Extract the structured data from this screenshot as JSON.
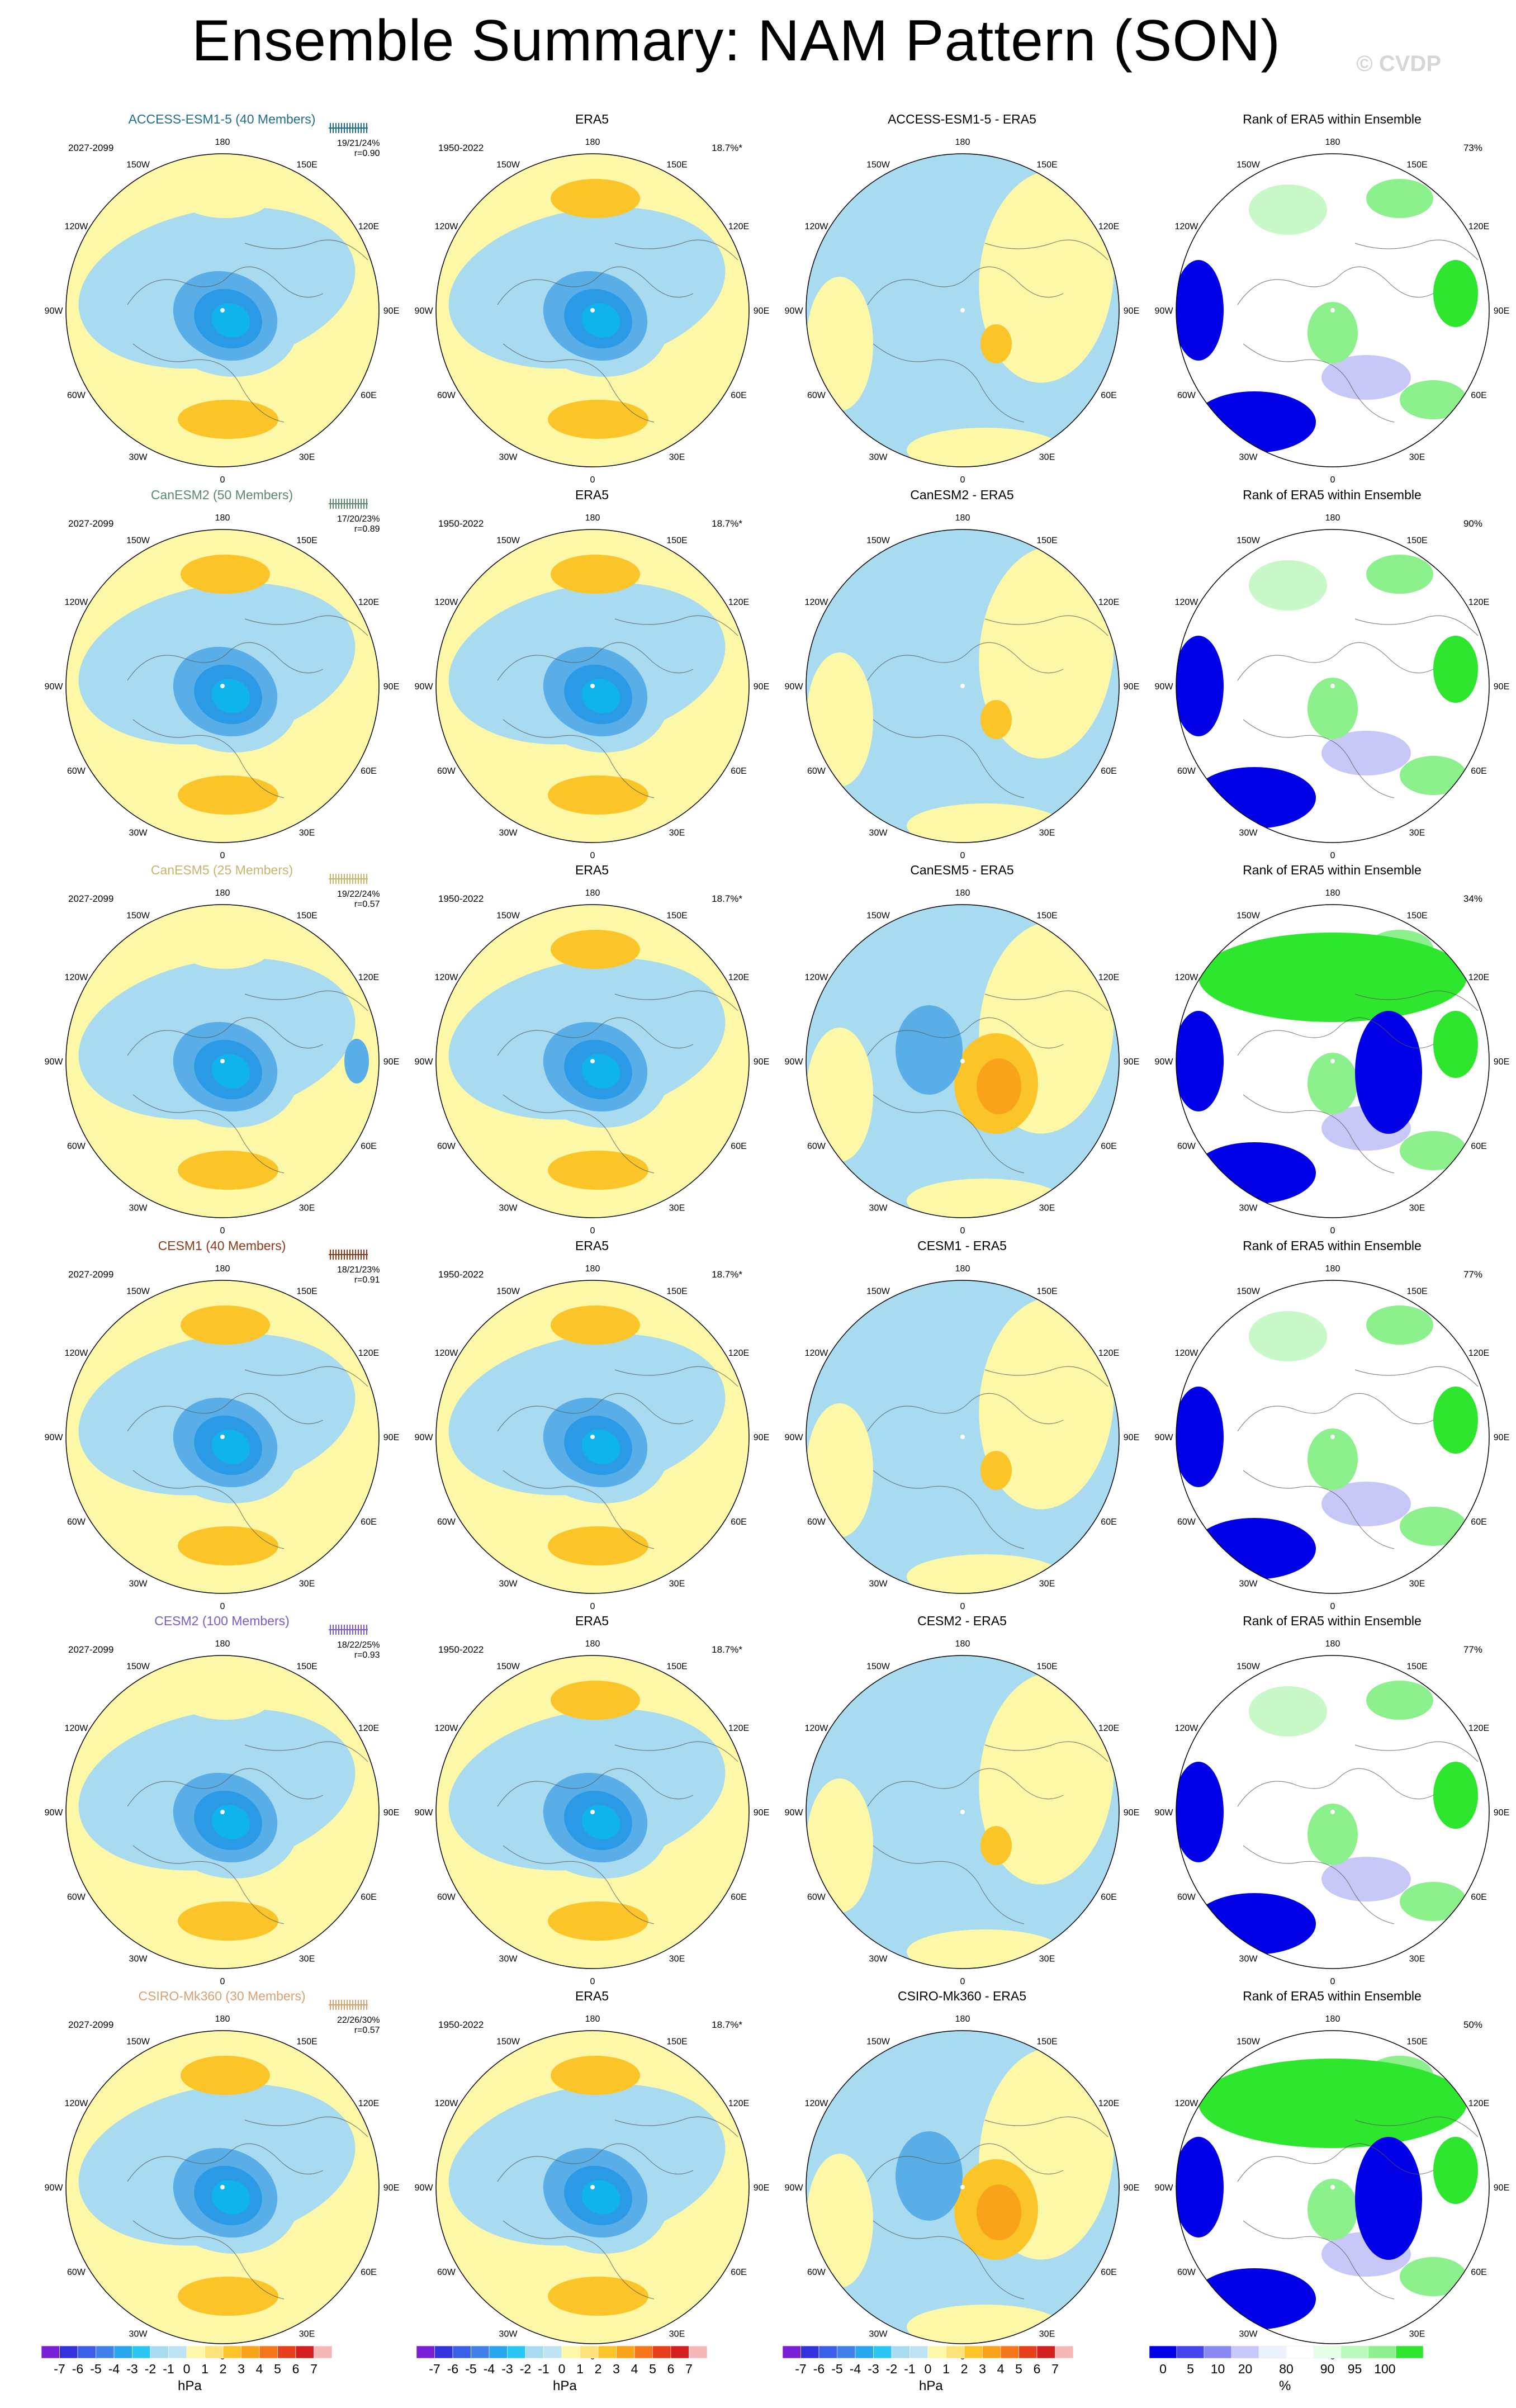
{
  "title": "Ensemble Summary: NAM Pattern (SON)",
  "watermark": "© CVDP",
  "lon_labels": [
    "180",
    "150E",
    "120E",
    "90E",
    "60E",
    "30E",
    "0",
    "30W",
    "60W",
    "90W",
    "120W",
    "150W"
  ],
  "obs_title": "ERA5",
  "rank_title": "Rank of ERA5 within Ensemble",
  "obs_period": "1950-2022",
  "obs_pct": "18.7%*",
  "model_period": "2027-2099",
  "rows": [
    {
      "model_title": "ACCESS-ESM1-5 (40 Members)",
      "model_color": "#1f6e8c",
      "pct_range": "19/21/24%",
      "r": "r=0.90",
      "diff_title": "ACCESS-ESM1-5 - ERA5",
      "rank_pct": "73%",
      "rank_icon": "rank-map-icon"
    },
    {
      "model_title": "CanESM2 (50 Members)",
      "model_color": "#5a8a6a",
      "pct_range": "17/20/23%",
      "r": "r=0.89",
      "diff_title": "CanESM2 - ERA5",
      "rank_pct": "90%",
      "rank_icon": "rank-map-icon"
    },
    {
      "model_title": "CanESM5 (25 Members)",
      "model_color": "#c8b46a",
      "pct_range": "19/22/24%",
      "r": "r=0.57",
      "diff_title": "CanESM5 - ERA5",
      "rank_pct": "34%",
      "rank_icon": "rank-map-icon"
    },
    {
      "model_title": "CESM1 (40 Members)",
      "model_color": "#8b3a1a",
      "pct_range": "18/21/23%",
      "r": "r=0.91",
      "diff_title": "CESM1 - ERA5",
      "rank_pct": "77%",
      "rank_icon": "rank-map-icon"
    },
    {
      "model_title": "CESM2 (100 Members)",
      "model_color": "#7b5cc8",
      "pct_range": "18/22/25%",
      "r": "r=0.93",
      "diff_title": "CESM2 - ERA5",
      "rank_pct": "77%",
      "rank_icon": "rank-map-icon"
    },
    {
      "model_title": "CSIRO-Mk360 (30 Members)",
      "model_color": "#d9a070",
      "pct_range": "22/26/30%",
      "r": "r=0.57",
      "diff_title": "CSIRO-Mk360 - ERA5",
      "rank_pct": "50%",
      "rank_icon": "rank-map-icon"
    }
  ],
  "colorbar_hpa": {
    "unit": "hPa",
    "ticks": [
      "-7",
      "-6",
      "-5",
      "-4",
      "-3",
      "-2",
      "-1",
      "0",
      "1",
      "2",
      "3",
      "4",
      "5",
      "6",
      "7"
    ],
    "colors": [
      "#7a1fd6",
      "#3333dd",
      "#3b5ee8",
      "#3f80ea",
      "#2aa6ee",
      "#2cc6f2",
      "#a8dbef",
      "#bfe3f3",
      "#fdf7a8",
      "#fde27a",
      "#fbc428",
      "#f9a31a",
      "#f5761a",
      "#e8401c",
      "#d41f1f",
      "#f4b8b8"
    ]
  },
  "colorbar_rank": {
    "unit": "%",
    "ticks": [
      "0",
      "5",
      "10",
      "20",
      "80",
      "90",
      "95",
      "100"
    ],
    "colors": [
      "#0000e6",
      "#4444ee",
      "#8888f2",
      "#c8c8f8",
      "#ecf1ff",
      "#ffffff",
      "#e6ffe6",
      "#bbf8bb",
      "#8cf08c",
      "#2ee62e"
    ]
  }
}
